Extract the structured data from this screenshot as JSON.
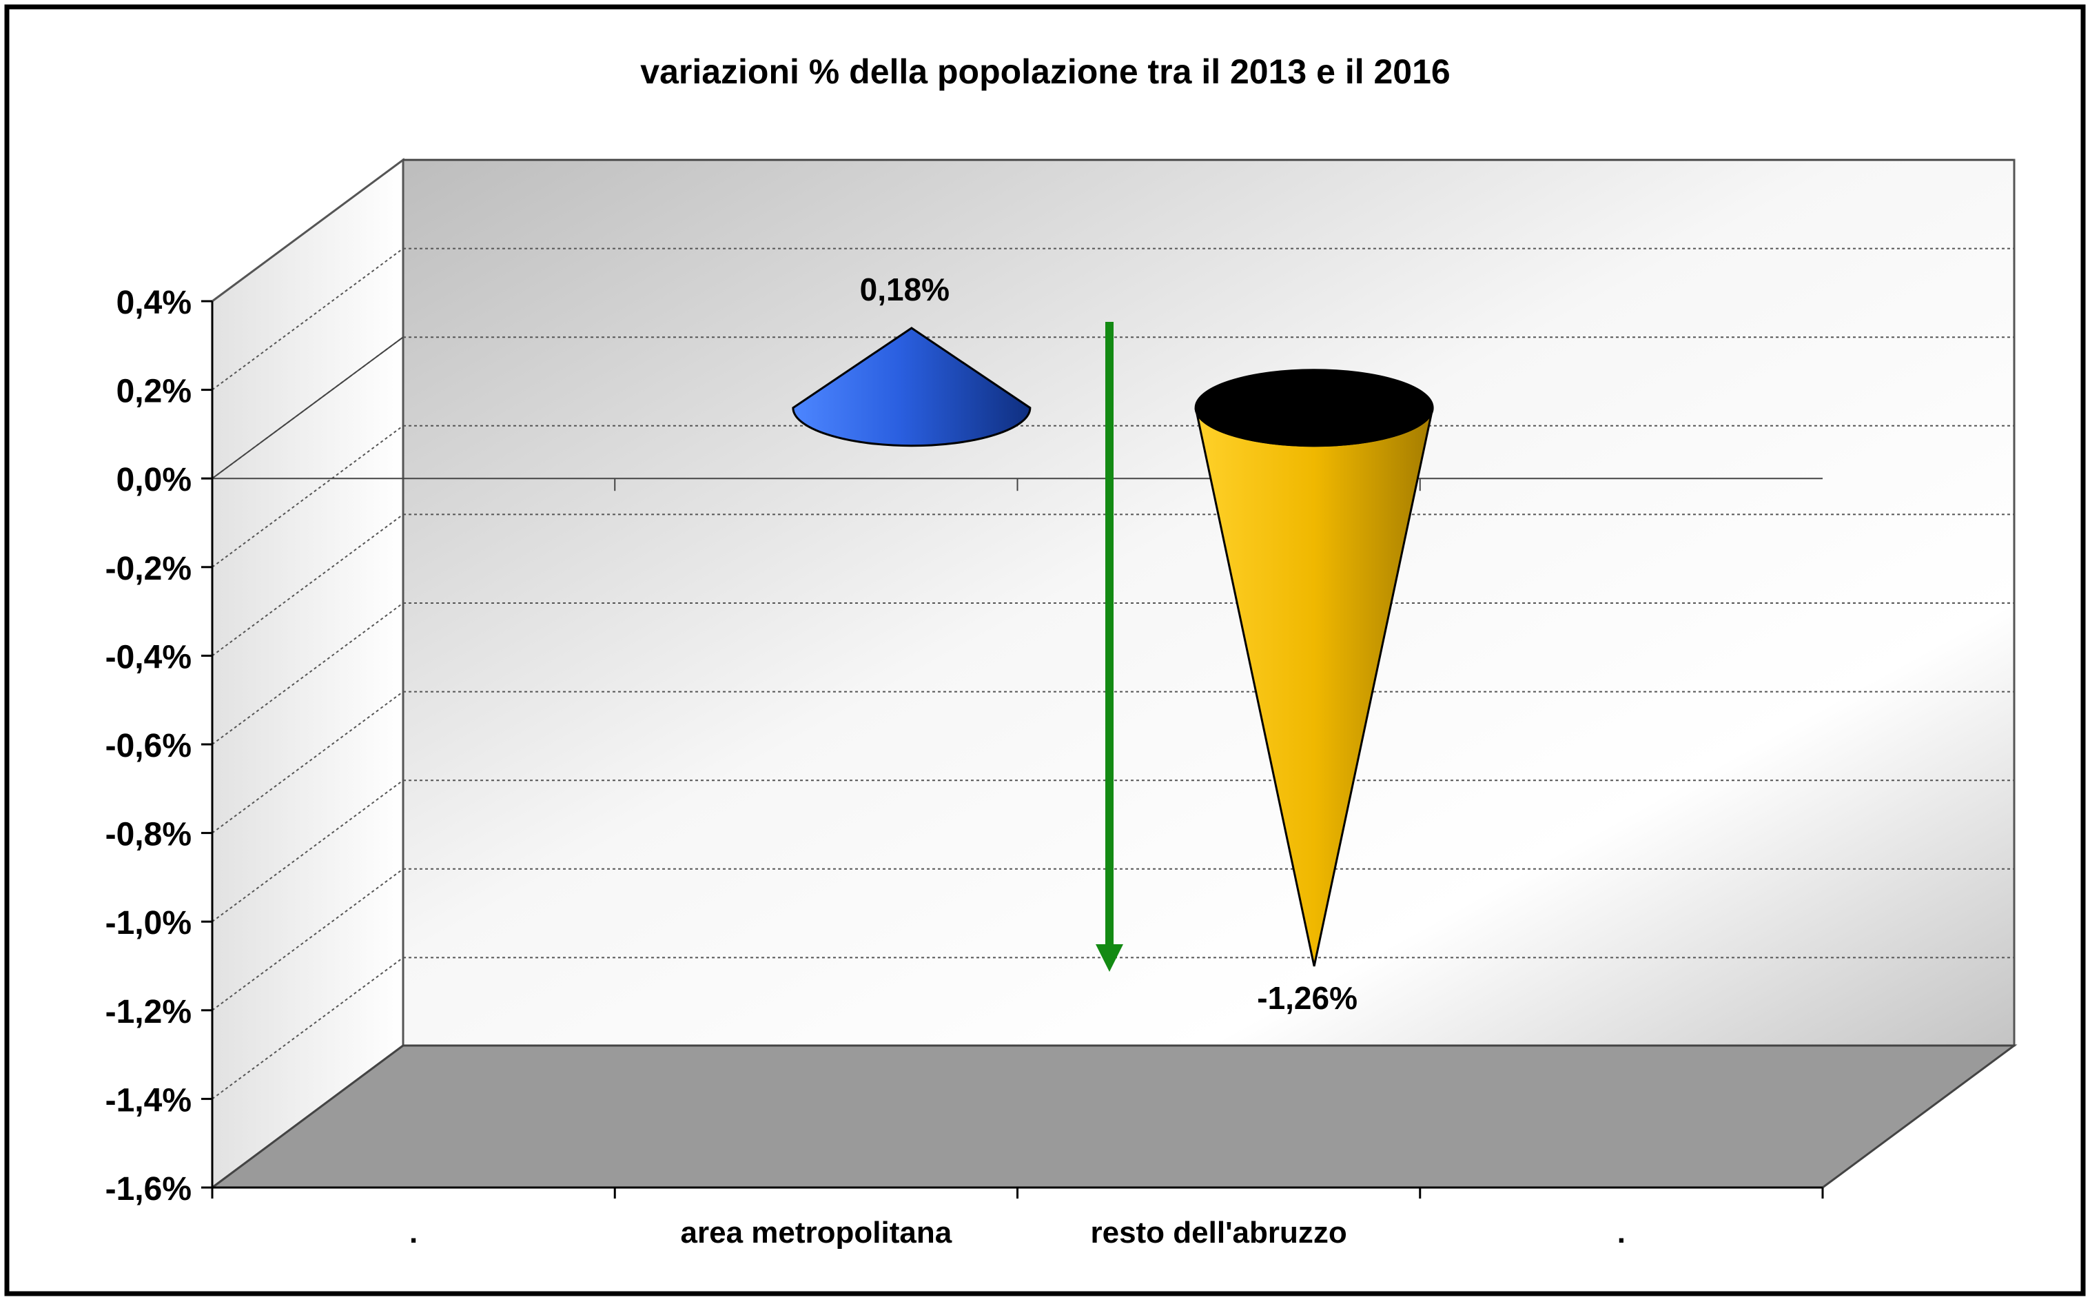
{
  "chart_data": {
    "type": "bar",
    "style": "3d-cone",
    "title": "variazioni % della popolazione tra il 2013 e il 2016",
    "categories": [
      ".",
      "area metropolitana",
      "resto dell'abruzzo",
      "."
    ],
    "values": [
      null,
      0.18,
      -1.26,
      null
    ],
    "data_labels": [
      "",
      "0,18%",
      "-1,26%",
      ""
    ],
    "y_ticks": [
      0.4,
      0.2,
      0.0,
      -0.2,
      -0.4,
      -0.6,
      -0.8,
      -1.0,
      -1.2,
      -1.4,
      -1.6
    ],
    "y_tick_labels": [
      "0,4%",
      "0,2%",
      "0,0%",
      "-0,2%",
      "-0,4%",
      "-0,6%",
      "-0,8%",
      "-1,0%",
      "-1,2%",
      "-1,4%",
      "-1,6%"
    ],
    "ylim": [
      -1.6,
      0.4
    ],
    "xlabel": "",
    "ylabel": "",
    "grid": true,
    "legend": "none",
    "annotations": [
      {
        "type": "arrow",
        "direction": "down",
        "color": "#138a13"
      }
    ],
    "colors": {
      "area metropolitana": "#2a5fe0",
      "resto dell'abruzzo": "#f0b800",
      "arrow": "#138a13",
      "floor": "#9a9a9a"
    }
  }
}
